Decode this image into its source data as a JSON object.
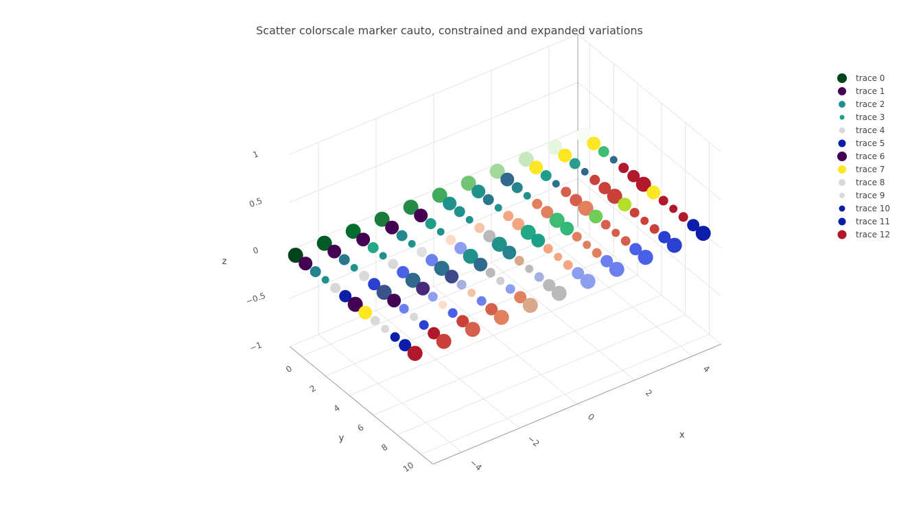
{
  "chart_data": {
    "type": "scatter",
    "title": "Scatter colorscale marker cauto, constrained and expanded variations",
    "axes": {
      "x": {
        "label": "x",
        "range": [
          -5,
          5
        ],
        "ticks": [
          "−4",
          "−2",
          "0",
          "2",
          "4"
        ],
        "tick_values": [
          -4,
          -2,
          0,
          2,
          4
        ]
      },
      "y": {
        "label": "y",
        "range": [
          -1,
          11
        ],
        "ticks": [
          "0",
          "2",
          "4",
          "6",
          "8",
          "10"
        ],
        "tick_values": [
          0,
          2,
          4,
          6,
          8,
          10
        ]
      },
      "z": {
        "label": "z",
        "range": [
          -1,
          1
        ],
        "ticks": [
          "1",
          "0.5",
          "0",
          "−0.5",
          "−1"
        ],
        "tick_values": [
          1,
          0.5,
          0,
          -0.5,
          -1
        ]
      }
    },
    "grid": true,
    "legend_position": "right",
    "points_per_trace_x": [
      -5,
      -4,
      -3,
      -2,
      -1,
      0,
      1,
      2,
      3,
      4,
      5
    ],
    "z_value": 0,
    "series": [
      {
        "name": "trace 0",
        "y": 0,
        "colors": [
          "#f7fcf5",
          "#e5f5e0",
          "#c7e9c0",
          "#a1d99b",
          "#74c476",
          "#41ab5d",
          "#238b45",
          "#1b7a3a",
          "#006d2c",
          "#005a24",
          "#00441b"
        ],
        "sizes": [
          22,
          22,
          22,
          22,
          22,
          22,
          22,
          22,
          22,
          22,
          22
        ]
      },
      {
        "name": "trace 1",
        "y": 1,
        "colors": [
          "#fde725",
          "#fde725",
          "#fde725",
          "#31688e",
          "#21918c",
          "#21918c",
          "#440154",
          "#440154",
          "#440154",
          "#440154",
          "#440154"
        ],
        "sizes": [
          20,
          20,
          20,
          20,
          20,
          20,
          20,
          20,
          20,
          20,
          20
        ]
      },
      {
        "name": "trace 2",
        "y": 2,
        "colors": [
          "#3dbc74",
          "#2a9d8f",
          "#1f9e89",
          "#25858e",
          "#2a788e",
          "#21918c",
          "#1f9e89",
          "#23898e",
          "#22a884",
          "#2a788e",
          "#26828e"
        ],
        "sizes": [
          16,
          16,
          16,
          16,
          16,
          16,
          16,
          16,
          16,
          16,
          16
        ]
      },
      {
        "name": "trace 3",
        "y": 3,
        "colors": [
          "#31688e",
          "#31688e",
          "#2c728e",
          "#21918c",
          "#21918c",
          "#21918c",
          "#21918c",
          "#21918c",
          "#21918c",
          "#21918c",
          "#21918c"
        ],
        "sizes": [
          11,
          11,
          11,
          11,
          11,
          11,
          11,
          11,
          11,
          11,
          11
        ]
      },
      {
        "name": "trace 4",
        "y": 4,
        "colors": [
          "#b2182b",
          "#c9413a",
          "#d6604d",
          "#e0805e",
          "#f4a582",
          "#f7c6a8",
          "#fddbc7",
          "#e0e0e0",
          "#d9d9d9",
          "#dadada",
          "#d8d8d8"
        ],
        "sizes": [
          15,
          15,
          15,
          15,
          15,
          15,
          15,
          15,
          15,
          15,
          15
        ]
      },
      {
        "name": "trace 5",
        "y": 5,
        "colors": [
          "#b2182b",
          "#c9413a",
          "#d6604d",
          "#e0805e",
          "#f4a582",
          "#bababa",
          "#8c9eed",
          "#6b80ed",
          "#4a60e8",
          "#2a40d0",
          "#0a1eaa"
        ],
        "sizes": [
          18,
          18,
          18,
          18,
          18,
          18,
          18,
          18,
          18,
          18,
          18
        ]
      },
      {
        "name": "trace 6",
        "y": 6,
        "colors": [
          "#b2182b",
          "#c9413a",
          "#e0805e",
          "#3dbc74",
          "#22a884",
          "#21918c",
          "#21918c",
          "#2c728e",
          "#31688e",
          "#3b528b",
          "#440154"
        ],
        "sizes": [
          22,
          22,
          22,
          22,
          22,
          22,
          22,
          22,
          22,
          22,
          22
        ]
      },
      {
        "name": "trace 7",
        "y": 7,
        "colors": [
          "#fde725",
          "#b5de2b",
          "#6ece58",
          "#35b779",
          "#1f9e89",
          "#26828e",
          "#31688e",
          "#3e4989",
          "#482878",
          "#440154",
          "#fde725"
        ],
        "sizes": [
          20,
          20,
          20,
          20,
          20,
          20,
          20,
          20,
          20,
          20,
          20
        ]
      },
      {
        "name": "trace 8",
        "y": 8,
        "colors": [
          "#b2182b",
          "#c9413a",
          "#d6604d",
          "#e0805e",
          "#f4a582",
          "#d9a78a",
          "#bababa",
          "#a3b0e0",
          "#8c9eed",
          "#6b80ed",
          "#d9d9d9"
        ],
        "sizes": [
          14,
          14,
          14,
          14,
          14,
          14,
          14,
          14,
          14,
          14,
          14
        ]
      },
      {
        "name": "trace 9",
        "y": 9,
        "colors": [
          "#b2182b",
          "#c9413a",
          "#d6604d",
          "#e0805e",
          "#f4a582",
          "#bababa",
          "#d0d0d0",
          "#f4c3a3",
          "#fddbc7",
          "#d8d8d8",
          "#d9d9d9"
        ],
        "sizes": [
          12,
          12,
          12,
          12,
          12,
          12,
          12,
          12,
          12,
          12,
          12
        ]
      },
      {
        "name": "trace 10",
        "y": 10,
        "colors": [
          "#b2182b",
          "#c9413a",
          "#d6604d",
          "#e0805e",
          "#f4a582",
          "#a3b0e0",
          "#8c9eed",
          "#6b80ed",
          "#4a60e8",
          "#2a40d0",
          "#0a1eaa"
        ],
        "sizes": [
          14,
          14,
          14,
          14,
          14,
          14,
          14,
          14,
          14,
          14,
          14
        ]
      },
      {
        "name": "trace 11",
        "y": 11,
        "colors": [
          "#0a1eaa",
          "#2a40d0",
          "#4a60e8",
          "#6b80ed",
          "#8c9eed",
          "#bababa",
          "#e0805e",
          "#d6604d",
          "#c9413a",
          "#b2182b",
          "#0a1eaa"
        ],
        "sizes": [
          18,
          18,
          18,
          18,
          18,
          18,
          18,
          18,
          18,
          18,
          18
        ]
      },
      {
        "name": "trace 12",
        "y": 12,
        "colors": [
          "#0a1eaa",
          "#2a40d0",
          "#4a60e8",
          "#6b80ed",
          "#8c9eed",
          "#bababa",
          "#d9a78a",
          "#e0805e",
          "#d6604d",
          "#c9413a",
          "#b2182b"
        ],
        "sizes": [
          22,
          22,
          22,
          22,
          22,
          22,
          22,
          22,
          22,
          22,
          22
        ]
      }
    ],
    "legend": [
      {
        "name": "trace 0",
        "color": "#00441b",
        "size": 14
      },
      {
        "name": "trace 1",
        "color": "#440154",
        "size": 12
      },
      {
        "name": "trace 2",
        "color": "#21918c",
        "size": 10
      },
      {
        "name": "trace 3",
        "color": "#1f9e89",
        "size": 7
      },
      {
        "name": "trace 4",
        "color": "#d9d9d9",
        "size": 9
      },
      {
        "name": "trace 5",
        "color": "#0a1eaa",
        "size": 11
      },
      {
        "name": "trace 6",
        "color": "#440154",
        "size": 14
      },
      {
        "name": "trace 7",
        "color": "#fde725",
        "size": 12
      },
      {
        "name": "trace 8",
        "color": "#d9d9d9",
        "size": 10
      },
      {
        "name": "trace 9",
        "color": "#d9d9d9",
        "size": 8
      },
      {
        "name": "trace 10",
        "color": "#0a1eaa",
        "size": 9
      },
      {
        "name": "trace 11",
        "color": "#0a1eaa",
        "size": 11
      },
      {
        "name": "trace 12",
        "color": "#b2182b",
        "size": 13
      }
    ]
  }
}
